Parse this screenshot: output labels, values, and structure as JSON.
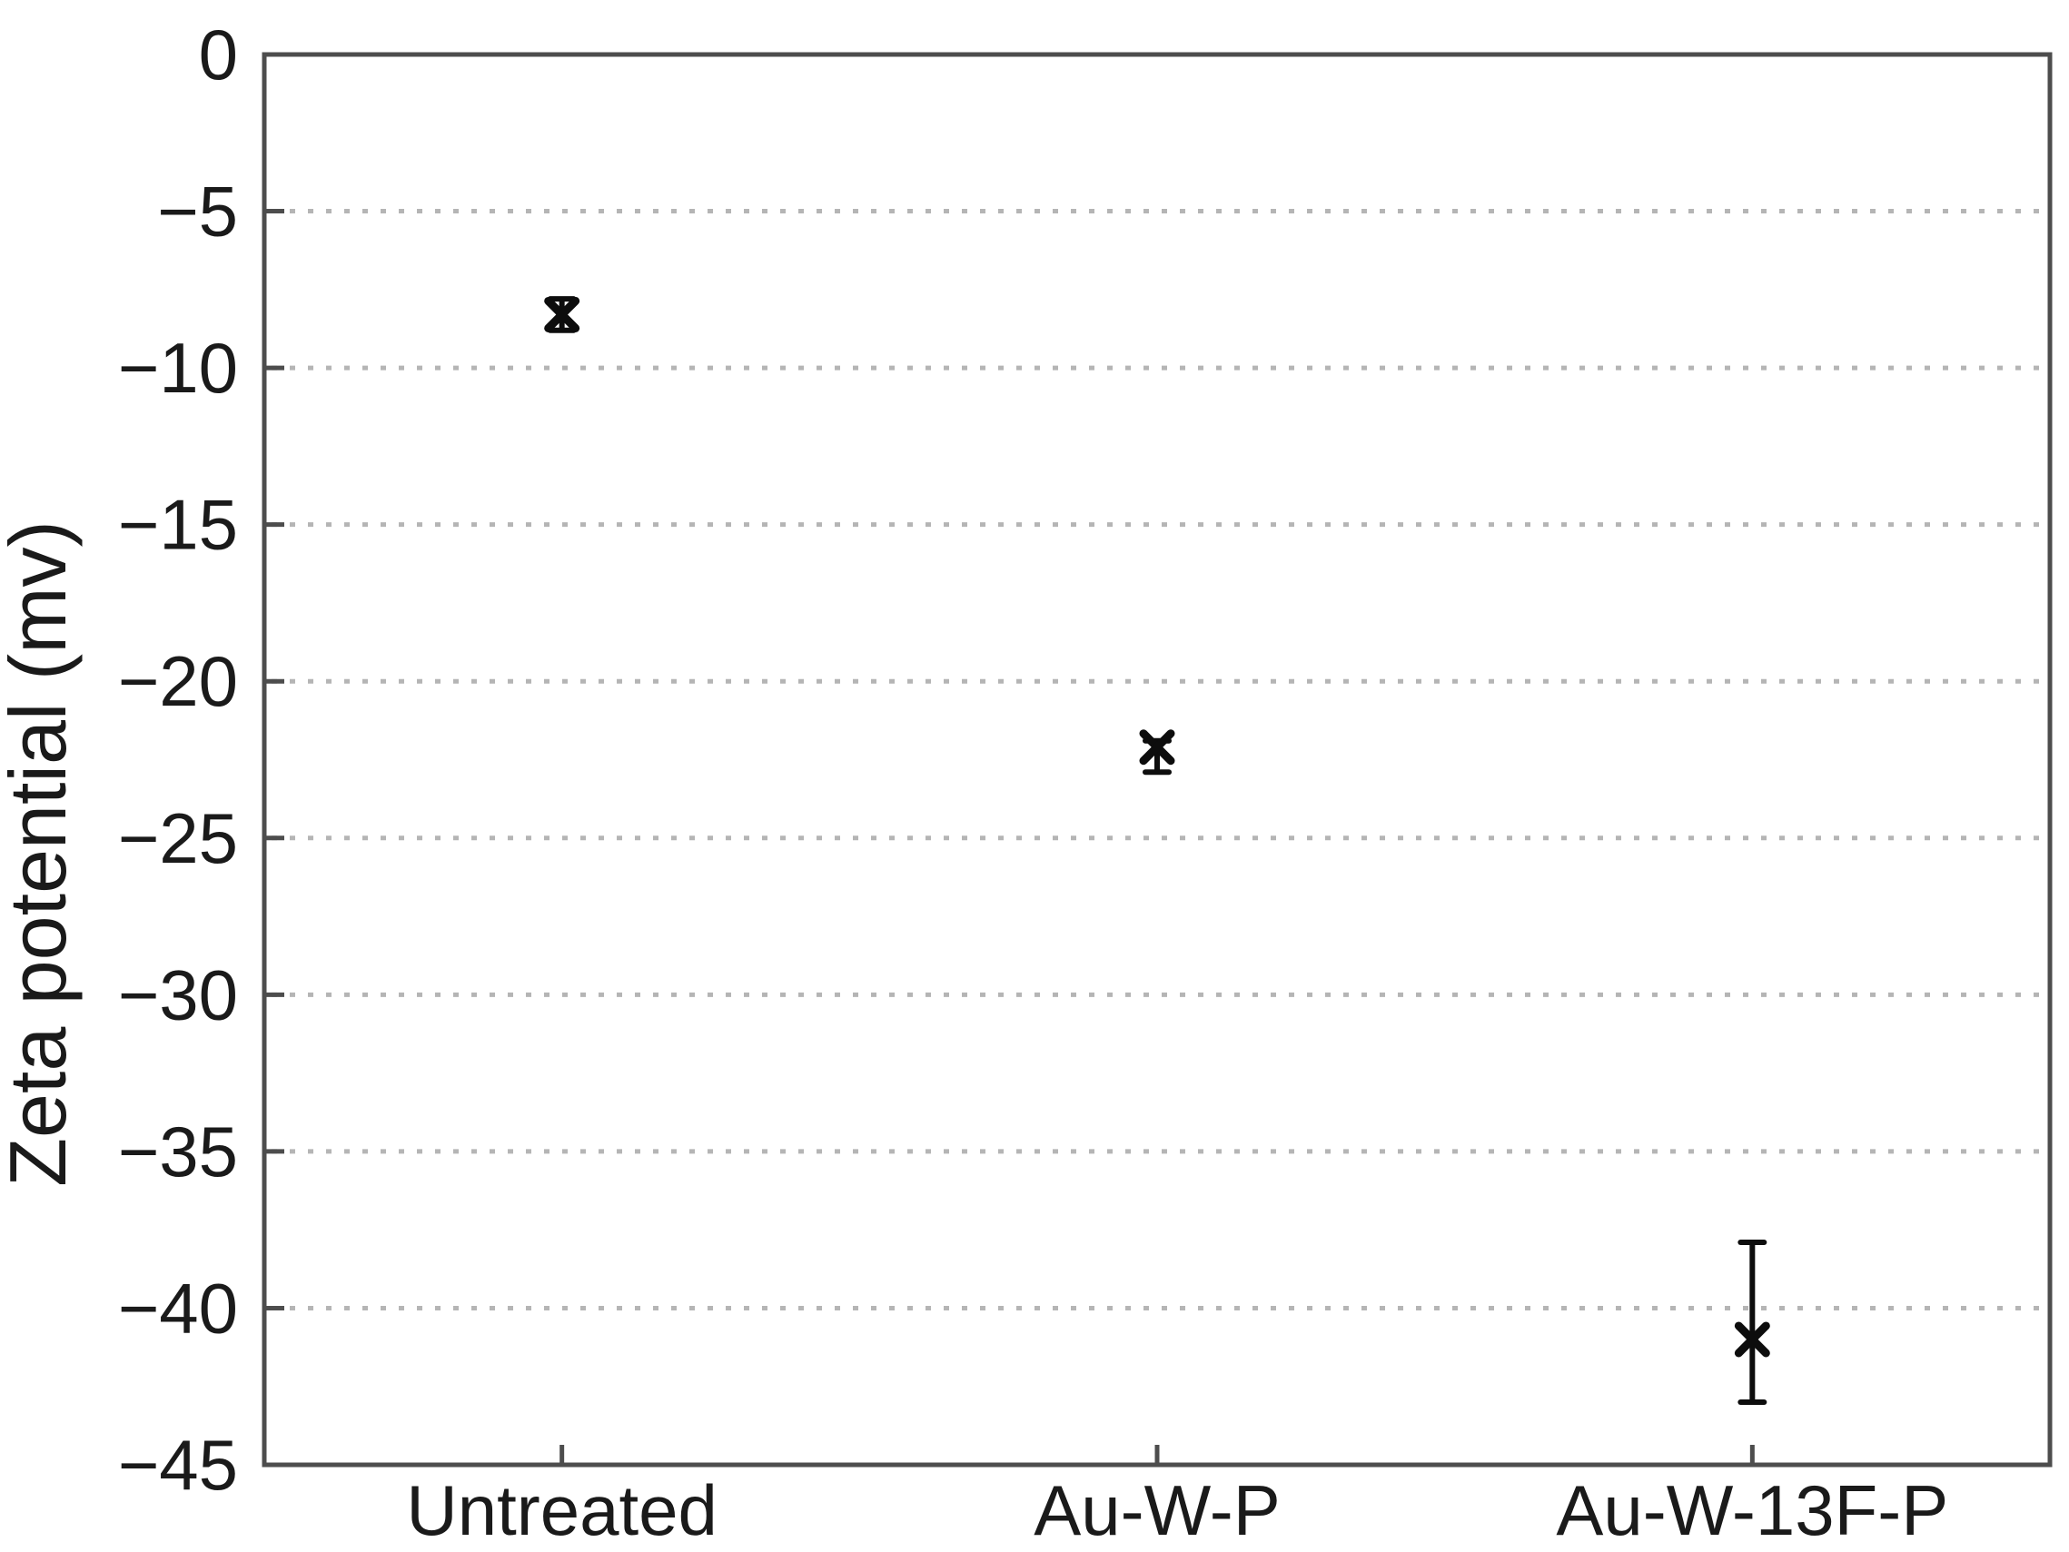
{
  "chart_data": {
    "type": "scatter",
    "title": "",
    "xlabel": "",
    "ylabel": "Zeta potential (mv)",
    "categories": [
      "Untreated",
      "Au-W-P",
      "Au-W-13F-P"
    ],
    "series": [
      {
        "name": "Zeta potential",
        "marker": "x",
        "points": [
          {
            "category": "Untreated",
            "y": -8.3,
            "err_up": 0.5,
            "err_down": 0.5
          },
          {
            "category": "Au-W-P",
            "y": -22.1,
            "err_up": 0.2,
            "err_down": 0.8
          },
          {
            "category": "Au-W-13F-P",
            "y": -41.0,
            "err_up": 3.1,
            "err_down": 2.0
          }
        ]
      }
    ],
    "ylim": [
      -45,
      0
    ],
    "yticks": [
      0,
      -5,
      -10,
      -15,
      -20,
      -25,
      -30,
      -35,
      -40,
      -45
    ],
    "grid": "horizontal-dotted",
    "legend": "none",
    "colors": {
      "marker": "#0d0d0d",
      "frame": "#4d4d4d",
      "grid": "#b5b5b5",
      "text": "#1a1a1a"
    }
  }
}
